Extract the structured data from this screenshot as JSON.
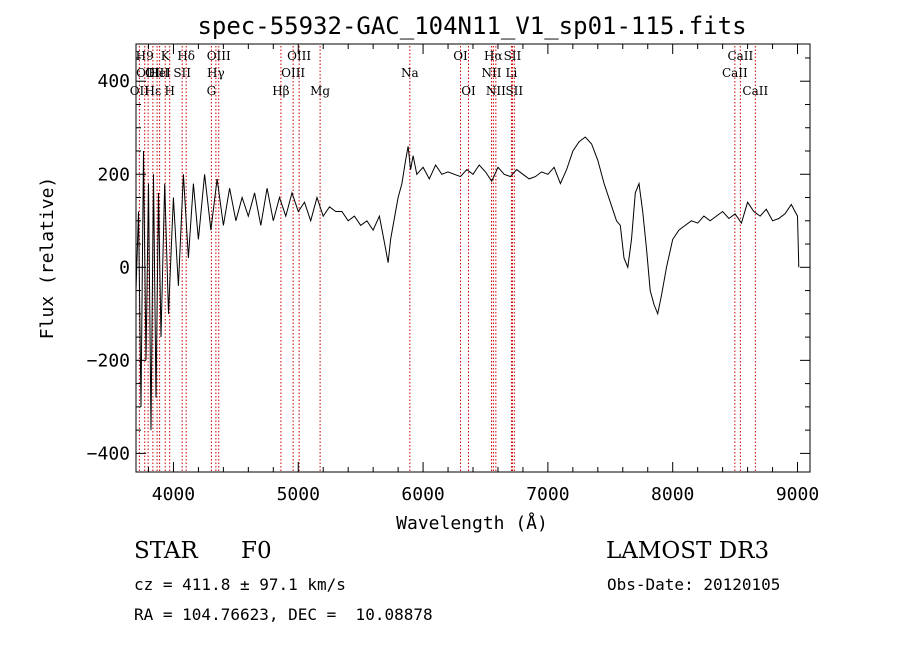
{
  "chart_data": {
    "type": "line",
    "title": "spec-55932-GAC_104N11_V1_sp01-115.fits",
    "xlabel": "Wavelength (Å)",
    "ylabel": "Flux (relative)",
    "xlim": [
      3700,
      9100
    ],
    "ylim": [
      -440,
      480
    ],
    "xticks": [
      4000,
      5000,
      6000,
      7000,
      8000,
      9000
    ],
    "yticks": [
      -400,
      -200,
      0,
      200,
      400
    ],
    "xtick_labels": [
      "4000",
      "5000",
      "6000",
      "7000",
      "8000",
      "9000"
    ],
    "ytick_labels": [
      "−400",
      "−200",
      "0",
      "200",
      "400"
    ],
    "series": [
      {
        "name": "flux",
        "x": [
          3700,
          3720,
          3740,
          3760,
          3780,
          3800,
          3820,
          3840,
          3860,
          3880,
          3900,
          3930,
          3960,
          4000,
          4040,
          4080,
          4120,
          4160,
          4200,
          4250,
          4300,
          4350,
          4400,
          4450,
          4500,
          4550,
          4600,
          4650,
          4700,
          4750,
          4800,
          4850,
          4900,
          4950,
          5000,
          5050,
          5100,
          5150,
          5200,
          5250,
          5300,
          5350,
          5400,
          5450,
          5500,
          5550,
          5600,
          5650,
          5700,
          5720,
          5740,
          5760,
          5780,
          5800,
          5830,
          5860,
          5880,
          5900,
          5920,
          5950,
          6000,
          6050,
          6100,
          6150,
          6200,
          6250,
          6300,
          6350,
          6400,
          6450,
          6500,
          6550,
          6600,
          6650,
          6700,
          6750,
          6800,
          6850,
          6900,
          6950,
          7000,
          7050,
          7100,
          7150,
          7200,
          7250,
          7300,
          7350,
          7400,
          7450,
          7500,
          7550,
          7580,
          7610,
          7640,
          7670,
          7700,
          7730,
          7760,
          7790,
          7820,
          7850,
          7880,
          7910,
          7950,
          8000,
          8050,
          8100,
          8150,
          8200,
          8250,
          8300,
          8350,
          8400,
          8450,
          8500,
          8550,
          8600,
          8650,
          8700,
          8750,
          8800,
          8850,
          8900,
          8950,
          9000,
          9010
        ],
        "values": [
          -50,
          120,
          -300,
          250,
          -200,
          180,
          -350,
          200,
          -280,
          160,
          -150,
          180,
          -100,
          150,
          -40,
          200,
          20,
          180,
          60,
          200,
          80,
          190,
          90,
          170,
          100,
          150,
          110,
          160,
          90,
          170,
          100,
          150,
          110,
          160,
          120,
          140,
          100,
          150,
          110,
          130,
          120,
          120,
          100,
          110,
          90,
          100,
          80,
          110,
          40,
          10,
          60,
          90,
          120,
          150,
          180,
          230,
          260,
          210,
          240,
          200,
          215,
          190,
          220,
          200,
          205,
          200,
          195,
          210,
          200,
          220,
          205,
          185,
          215,
          200,
          195,
          210,
          200,
          190,
          195,
          205,
          200,
          215,
          180,
          210,
          250,
          270,
          280,
          265,
          230,
          180,
          140,
          100,
          90,
          20,
          0,
          60,
          160,
          180,
          120,
          40,
          -50,
          -80,
          -100,
          -60,
          0,
          60,
          80,
          90,
          100,
          95,
          110,
          100,
          110,
          120,
          105,
          115,
          95,
          140,
          120,
          110,
          125,
          100,
          105,
          115,
          135,
          110,
          0
        ]
      }
    ],
    "line_markers": [
      {
        "wavelength": 3727,
        "row": 3,
        "label": "OII"
      },
      {
        "wavelength": 3770,
        "row": 1,
        "label": "H9"
      },
      {
        "wavelength": 3797,
        "row": 2,
        "label": "OIII"
      },
      {
        "wavelength": 3835,
        "row": 3,
        "label": "Hε"
      },
      {
        "wavelength": 3869,
        "row": 2,
        "label": "OIII"
      },
      {
        "wavelength": 3889,
        "row": 2,
        "label": "HeI"
      },
      {
        "wavelength": 3934,
        "row": 1,
        "label": "K"
      },
      {
        "wavelength": 3970,
        "row": 3,
        "label": "H"
      },
      {
        "wavelength": 4070,
        "row": 2,
        "label": "SII"
      },
      {
        "wavelength": 4102,
        "row": 1,
        "label": "Hδ"
      },
      {
        "wavelength": 4304,
        "row": 3,
        "label": "G"
      },
      {
        "wavelength": 4340,
        "row": 2,
        "label": "Hγ"
      },
      {
        "wavelength": 4363,
        "row": 1,
        "label": "OIII"
      },
      {
        "wavelength": 4861,
        "row": 3,
        "label": "Hβ"
      },
      {
        "wavelength": 4959,
        "row": 2,
        "label": "OIII"
      },
      {
        "wavelength": 5007,
        "row": 1,
        "label": "OIII"
      },
      {
        "wavelength": 5175,
        "row": 3,
        "label": "Mg"
      },
      {
        "wavelength": 5894,
        "row": 2,
        "label": "Na"
      },
      {
        "wavelength": 6300,
        "row": 1,
        "label": "OI"
      },
      {
        "wavelength": 6364,
        "row": 3,
        "label": "OI"
      },
      {
        "wavelength": 6548,
        "row": 2,
        "label": "NII"
      },
      {
        "wavelength": 6563,
        "row": 1,
        "label": "Hα"
      },
      {
        "wavelength": 6583,
        "row": 3,
        "label": "NII"
      },
      {
        "wavelength": 6708,
        "row": 2,
        "label": "Li"
      },
      {
        "wavelength": 6716,
        "row": 1,
        "label": "SII"
      },
      {
        "wavelength": 6731,
        "row": 3,
        "label": "SII"
      },
      {
        "wavelength": 8498,
        "row": 2,
        "label": "CaII"
      },
      {
        "wavelength": 8542,
        "row": 1,
        "label": "CaII"
      },
      {
        "wavelength": 8662,
        "row": 3,
        "label": "CaII"
      }
    ]
  },
  "info": {
    "object_class": "STAR",
    "subclass": "F0",
    "survey": "LAMOST DR3",
    "redshift_text": "cz = 411.8 ± 97.1 km/s",
    "obs_date_text": "Obs-Date: 20120105",
    "coords_text": "RA = 104.76623, DEC =  10.08878"
  },
  "colors": {
    "spectrum": "#000000",
    "marker_line": "#cc0000",
    "axis": "#000000"
  }
}
